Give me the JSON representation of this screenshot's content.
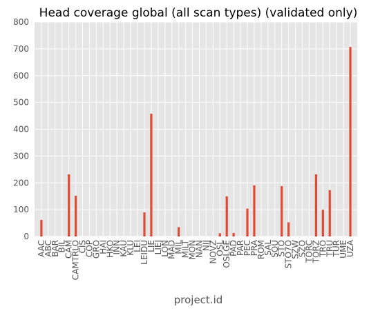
{
  "chart_data": {
    "type": "bar",
    "title": "Head coverage global (all scan types) (validated only)",
    "xlabel": "project.id",
    "ylabel": "",
    "ylim": [
      0,
      800
    ],
    "yticks": [
      0,
      100,
      200,
      300,
      400,
      500,
      600,
      700,
      800
    ],
    "grid": true,
    "legend": "none",
    "categories": [
      "AAC",
      "ABC",
      "BAR",
      "BIL",
      "CAM",
      "CAMTRLO",
      "CIS",
      "COP",
      "GRO",
      "HAI",
      "HKO",
      "INN",
      "KAU",
      "KLU",
      "LEI",
      "LEIDU",
      "LIE",
      "LIEJ",
      "LON",
      "MAD",
      "MIL",
      "MILT",
      "MON",
      "NAN",
      "NIJ",
      "NOVZ",
      "OSL",
      "OSLGE",
      "PAD",
      "PAR",
      "PEC",
      "PRA",
      "ROM",
      "SAL",
      "SOU",
      "STO",
      "STO7O",
      "SZW",
      "SZO",
      "TORC",
      "TORZ",
      "TRO",
      "TRU",
      "TUR",
      "UME",
      "UZA"
    ],
    "values": [
      62,
      0,
      0,
      0,
      232,
      152,
      0,
      0,
      0,
      0,
      0,
      0,
      0,
      0,
      0,
      90,
      458,
      0,
      0,
      0,
      35,
      0,
      0,
      0,
      0,
      0,
      12,
      150,
      13,
      0,
      104,
      191,
      0,
      0,
      0,
      188,
      53,
      0,
      0,
      0,
      232,
      100,
      173,
      0,
      0,
      707
    ],
    "colors": {
      "bar": "#E24A33",
      "plot_bg": "#E5E5E5",
      "grid": "#FFFFFF",
      "tick_text": "#555555"
    }
  }
}
